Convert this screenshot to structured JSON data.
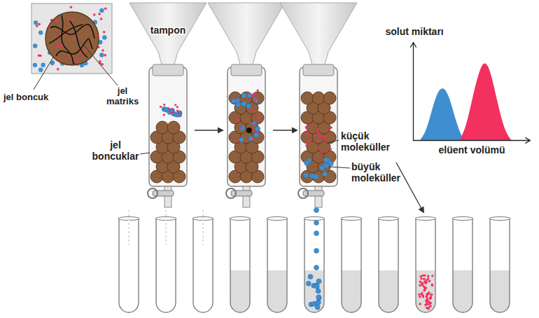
{
  "diagram": {
    "inset": {
      "bead_label": "jel boncuk",
      "matrix_label": [
        "jel",
        "matriks"
      ]
    },
    "columns": {
      "buffer_label": "tampon",
      "beads_label": [
        "jel",
        "boncuklar"
      ],
      "small_label": [
        "küçük",
        "moleküller"
      ],
      "large_label": [
        "büyük",
        "moleküller"
      ]
    }
  },
  "chart_data": {
    "type": "area",
    "xlabel": "elüent volümü",
    "ylabel": "solut miktarı",
    "xlim": [
      0,
      100
    ],
    "ylim": [
      0,
      100
    ],
    "tick_labels": false,
    "series": [
      {
        "color": "#3f8fd0",
        "x": [
          6,
          11,
          16,
          21,
          26,
          31,
          36,
          41,
          44
        ],
        "values": [
          0,
          8,
          30,
          50,
          55,
          45,
          22,
          5,
          0
        ]
      },
      {
        "color": "#f2315f",
        "x": [
          40,
          46,
          52,
          58,
          62,
          66,
          72,
          78,
          84
        ],
        "values": [
          0,
          15,
          50,
          76,
          80,
          72,
          40,
          10,
          0
        ]
      }
    ]
  }
}
